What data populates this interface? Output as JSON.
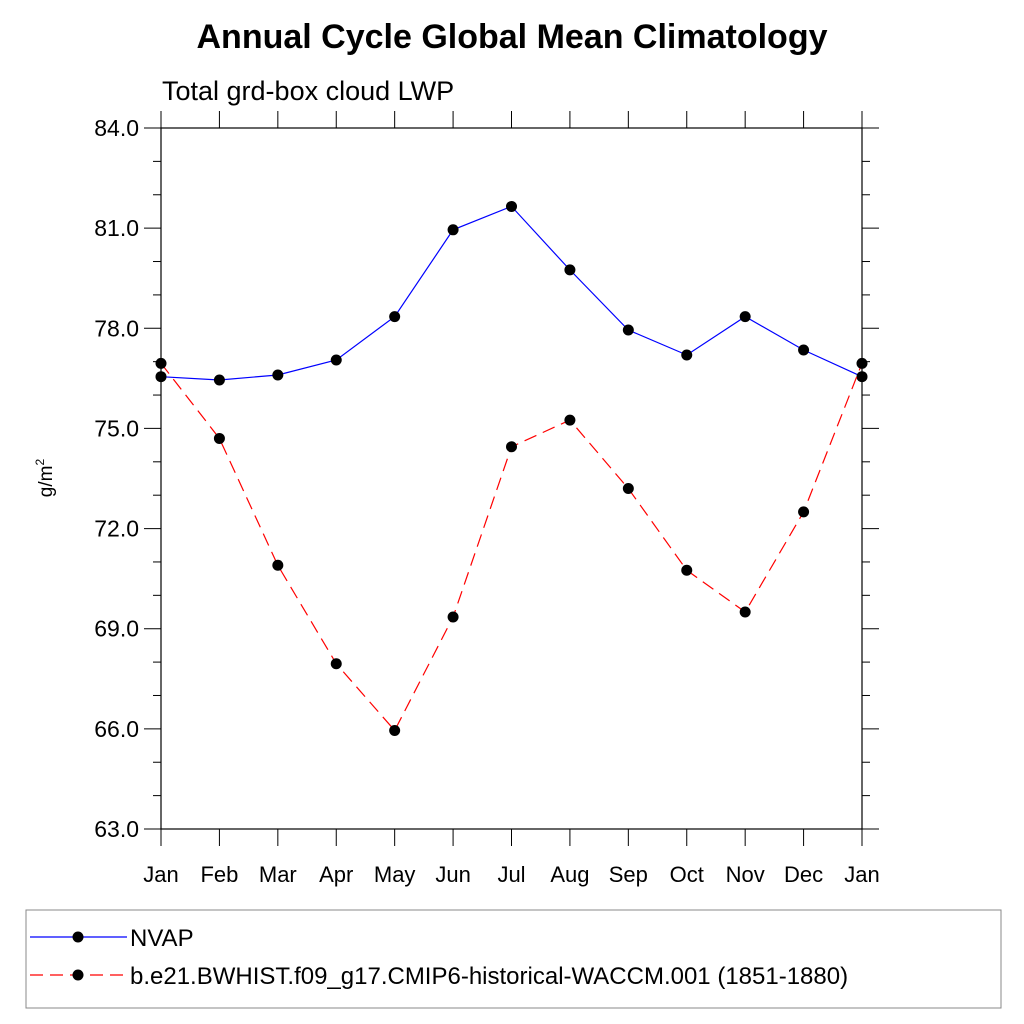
{
  "chart_data": {
    "type": "line",
    "title": "Annual Cycle Global Mean Climatology",
    "subtitle": "Total grd-box cloud LWP",
    "ylabel": "g/m",
    "ylabel_superscript": "2",
    "xlabel": "",
    "categories": [
      "Jan",
      "Feb",
      "Mar",
      "Apr",
      "May",
      "Jun",
      "Jul",
      "Aug",
      "Sep",
      "Oct",
      "Nov",
      "Dec",
      "Jan"
    ],
    "ylim": [
      63.0,
      84.0
    ],
    "yticks": [
      63.0,
      66.0,
      69.0,
      72.0,
      75.0,
      78.0,
      81.0,
      84.0
    ],
    "ytick_labels": [
      "63.0",
      "66.0",
      "69.0",
      "72.0",
      "75.0",
      "78.0",
      "81.0",
      "84.0"
    ],
    "yminor_step": 1.0,
    "grid": false,
    "legend_position": "bottom",
    "series": [
      {
        "name": "NVAP",
        "color": "#0000ff",
        "dash": "solid",
        "values": [
          76.55,
          76.45,
          76.6,
          77.05,
          78.35,
          80.95,
          81.65,
          79.75,
          77.95,
          77.2,
          78.35,
          77.35,
          76.55
        ]
      },
      {
        "name": "b.e21.BWHIST.f09_g17.CMIP6-historical-WACCM.001 (1851-1880)",
        "color": "#ff0000",
        "dash": "dashed",
        "values": [
          76.95,
          74.7,
          70.9,
          67.95,
          65.95,
          69.35,
          74.45,
          75.25,
          73.2,
          70.75,
          69.5,
          72.5,
          76.95
        ]
      }
    ]
  }
}
